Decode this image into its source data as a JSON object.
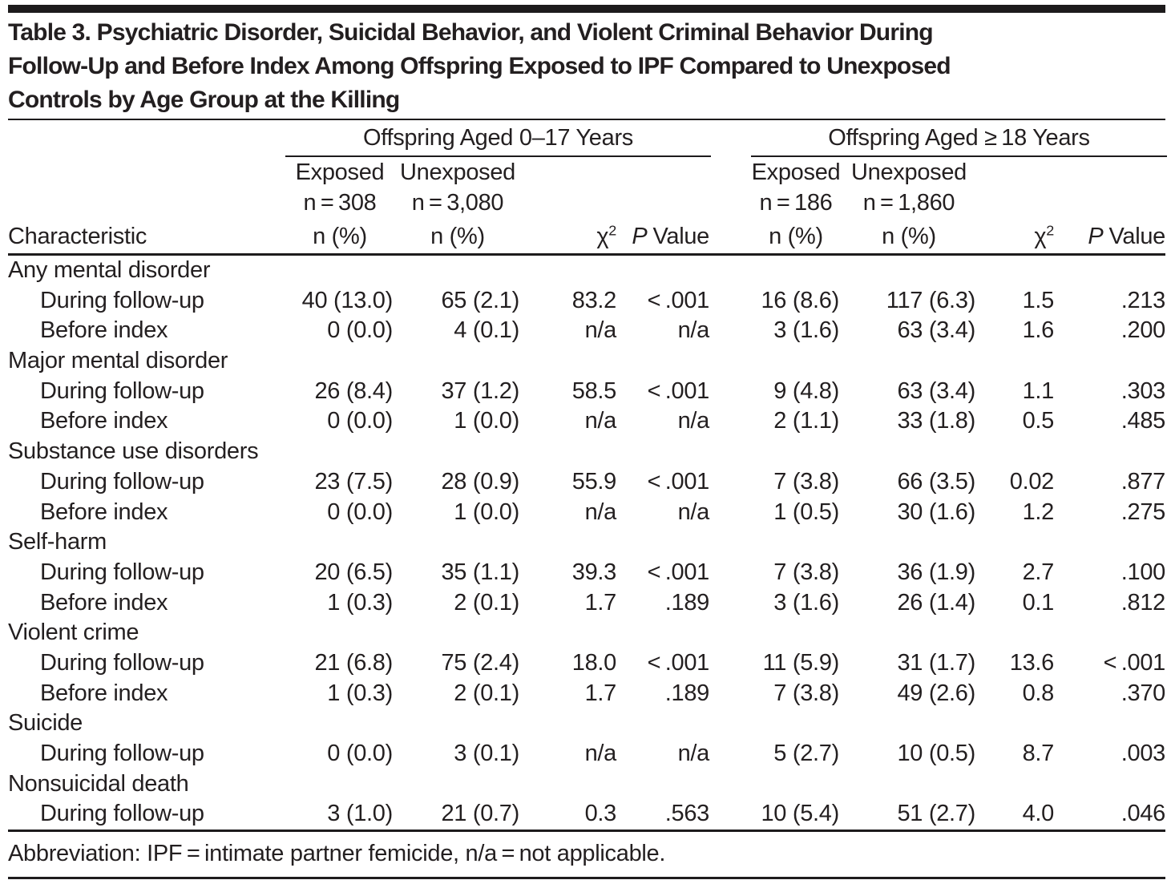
{
  "title": {
    "lines": [
      "Table 3. Psychiatric Disorder, Suicidal Behavior, and Violent Criminal Behavior During",
      "Follow-Up and Before Index Among Offspring Exposed to IPF Compared to Unexposed",
      "Controls by Age Group at the Killing"
    ]
  },
  "header": {
    "characteristic": "Characteristic",
    "groups": [
      {
        "title": "Offspring Aged 0–17 Years",
        "exposed": {
          "line1": "Exposed",
          "line2": "n = 308"
        },
        "unexposed": {
          "line1": "Unexposed",
          "line2": "n = 3,080"
        },
        "n_pct": "n (%)",
        "chi_base": "χ",
        "chi_sup": "2",
        "p_italic": "P",
        "p_rest": "Value"
      },
      {
        "title": "Offspring Aged ≥ 18 Years",
        "exposed": {
          "line1": "Exposed",
          "line2": "n = 186"
        },
        "unexposed": {
          "line1": "Unexposed",
          "line2": "n = 1,860"
        },
        "n_pct": "n (%)",
        "chi_base": "χ",
        "chi_sup": "2",
        "p_italic": "P",
        "p_rest": "Value"
      }
    ]
  },
  "table": {
    "rows": [
      {
        "type": "section",
        "label": "Any mental disorder"
      },
      {
        "type": "data",
        "label": "During follow-up",
        "cells": [
          "40 (13.0)",
          "65 (2.1)",
          "83.2",
          "< .001",
          "16 (8.6)",
          "117 (6.3)",
          "1.5",
          ".213"
        ]
      },
      {
        "type": "data",
        "label": "Before index",
        "cells": [
          "0 (0.0)",
          "4 (0.1)",
          "n/a",
          "n/a",
          "3 (1.6)",
          "63 (3.4)",
          "1.6",
          ".200"
        ]
      },
      {
        "type": "section",
        "label": "Major mental disorder"
      },
      {
        "type": "data",
        "label": "During follow-up",
        "cells": [
          "26 (8.4)",
          "37 (1.2)",
          "58.5",
          "< .001",
          "9 (4.8)",
          "63 (3.4)",
          "1.1",
          ".303"
        ]
      },
      {
        "type": "data",
        "label": "Before index",
        "cells": [
          "0 (0.0)",
          "1 (0.0)",
          "n/a",
          "n/a",
          "2 (1.1)",
          "33 (1.8)",
          "0.5",
          ".485"
        ]
      },
      {
        "type": "section",
        "label": "Substance use disorders"
      },
      {
        "type": "data",
        "label": "During follow-up",
        "cells": [
          "23 (7.5)",
          "28 (0.9)",
          "55.9",
          "< .001",
          "7 (3.8)",
          "66 (3.5)",
          "0.02",
          ".877"
        ]
      },
      {
        "type": "data",
        "label": "Before index",
        "cells": [
          "0 (0.0)",
          "1 (0.0)",
          "n/a",
          "n/a",
          "1 (0.5)",
          "30 (1.6)",
          "1.2",
          ".275"
        ]
      },
      {
        "type": "section",
        "label": "Self-harm"
      },
      {
        "type": "data",
        "label": "During follow-up",
        "cells": [
          "20 (6.5)",
          "35 (1.1)",
          "39.3",
          "< .001",
          "7 (3.8)",
          "36 (1.9)",
          "2.7",
          ".100"
        ]
      },
      {
        "type": "data",
        "label": "Before index",
        "cells": [
          "1 (0.3)",
          "2 (0.1)",
          "1.7",
          ".189",
          "3 (1.6)",
          "26 (1.4)",
          "0.1",
          ".812"
        ]
      },
      {
        "type": "section",
        "label": "Violent crime"
      },
      {
        "type": "data",
        "label": "During follow-up",
        "cells": [
          "21 (6.8)",
          "75 (2.4)",
          "18.0",
          "< .001",
          "11 (5.9)",
          "31 (1.7)",
          "13.6",
          "< .001"
        ]
      },
      {
        "type": "data",
        "label": "Before index",
        "cells": [
          "1 (0.3)",
          "2 (0.1)",
          "1.7",
          ".189",
          "7 (3.8)",
          "49 (2.6)",
          "0.8",
          ".370"
        ]
      },
      {
        "type": "section",
        "label": "Suicide"
      },
      {
        "type": "data",
        "label": "During follow-up",
        "cells": [
          "0 (0.0)",
          "3 (0.1)",
          "n/a",
          "n/a",
          "5 (2.7)",
          "10 (0.5)",
          "8.7",
          ".003"
        ]
      },
      {
        "type": "section",
        "label": "Nonsuicidal death"
      },
      {
        "type": "data",
        "label": "During follow-up",
        "cells": [
          "3 (1.0)",
          "21 (0.7)",
          "0.3",
          ".563",
          "10 (5.4)",
          "51 (2.7)",
          "4.0",
          ".046"
        ]
      }
    ]
  },
  "footnote": "Abbreviation: IPF = intimate partner femicide, n/a = not applicable.",
  "colors": {
    "ink": "#231f20",
    "rule": "#1d1b1c",
    "background": "#ffffff"
  }
}
